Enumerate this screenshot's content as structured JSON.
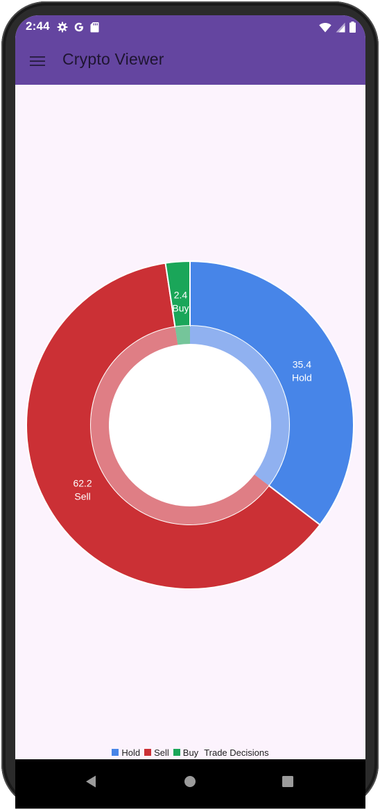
{
  "status_bar": {
    "time": "2:44",
    "left_icons": [
      "gear-icon",
      "google-icon",
      "sd-card-icon"
    ],
    "right_icons": [
      "wifi-icon",
      "cellular-signal-icon",
      "battery-icon"
    ]
  },
  "app_bar": {
    "title": "Crypto Viewer",
    "menu_icon": "hamburger-menu-icon"
  },
  "colors": {
    "app_bar": "#6445a0",
    "background": "#fcf3fd",
    "hold": "#4785e8",
    "sell": "#cb3035",
    "buy": "#1aa659"
  },
  "chart_data": {
    "type": "pie",
    "variant": "donut",
    "title": "Trade Decisions",
    "legend_position": "bottom",
    "slices": [
      {
        "label": "Hold",
        "value": 35.4,
        "color": "#4785e8"
      },
      {
        "label": "Sell",
        "value": 62.2,
        "color": "#cb3035"
      },
      {
        "label": "Buy",
        "value": 2.4,
        "color": "#1aa659"
      }
    ]
  },
  "nav_bar": {
    "back_icon": "back-triangle-icon",
    "home_icon": "home-circle-icon",
    "recents_icon": "recents-square-icon"
  }
}
